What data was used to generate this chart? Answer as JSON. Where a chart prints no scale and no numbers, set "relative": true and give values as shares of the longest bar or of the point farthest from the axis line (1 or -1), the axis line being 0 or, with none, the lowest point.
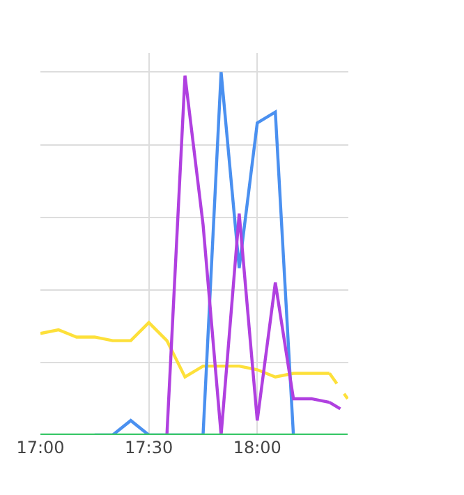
{
  "chart_data": {
    "type": "line",
    "relative": true,
    "grid": true,
    "tick_labels": "x",
    "marker": "none",
    "x": [
      17,
      17.0833,
      17.1667,
      17.25,
      17.3333,
      17.4167,
      17.5,
      17.5833,
      17.6667,
      17.75,
      17.8333,
      17.9167,
      18,
      18.0833,
      18.1667,
      18.25,
      18.3333,
      18.4167
    ],
    "xlim": [
      17,
      18.42
    ],
    "xticks": [
      {
        "value": 17,
        "label": "17:00"
      },
      {
        "value": 17.5,
        "label": "17:30"
      },
      {
        "value": 18,
        "label": "18:00"
      }
    ],
    "series": [
      {
        "color": "#fde03a",
        "line_style": "solid",
        "values": [
          0.28,
          0.29,
          0.27,
          0.27,
          0.26,
          0.26,
          0.31,
          0.26,
          0.16,
          0.19,
          0.19,
          0.19,
          0.18,
          0.16,
          0.17,
          0.17,
          0.17,
          null
        ]
      },
      {
        "color": "#fde03a",
        "line_style": "dashed",
        "values": [
          null,
          null,
          null,
          null,
          null,
          null,
          null,
          null,
          null,
          null,
          null,
          null,
          null,
          null,
          null,
          null,
          0.17,
          0.1
        ]
      },
      {
        "color": "#4a90f0",
        "line_style": "solid",
        "values": [
          null,
          null,
          null,
          0,
          0,
          0.04,
          0,
          0,
          0,
          0,
          1,
          0.46,
          0.86,
          0.89,
          0,
          null,
          null,
          null
        ]
      },
      {
        "color": "#b040e0",
        "line_style": "solid",
        "values": [
          null,
          null,
          null,
          null,
          null,
          null,
          null,
          0,
          0.99,
          0.58,
          0,
          0.61,
          0.04,
          0.42,
          0.1,
          0.1,
          0.09,
          null
        ]
      },
      {
        "color": "#b040e0",
        "line_style": "dashed",
        "values": [
          null,
          null,
          null,
          null,
          null,
          null,
          null,
          null,
          null,
          null,
          null,
          null,
          null,
          null,
          null,
          null,
          0.09,
          0.06
        ]
      },
      {
        "color": "#3cc86a",
        "line_style": "solid",
        "values": [
          0,
          0,
          0,
          0,
          0,
          0,
          0,
          0,
          0,
          0,
          0,
          0,
          0,
          0,
          0,
          0,
          0,
          0
        ]
      }
    ]
  }
}
